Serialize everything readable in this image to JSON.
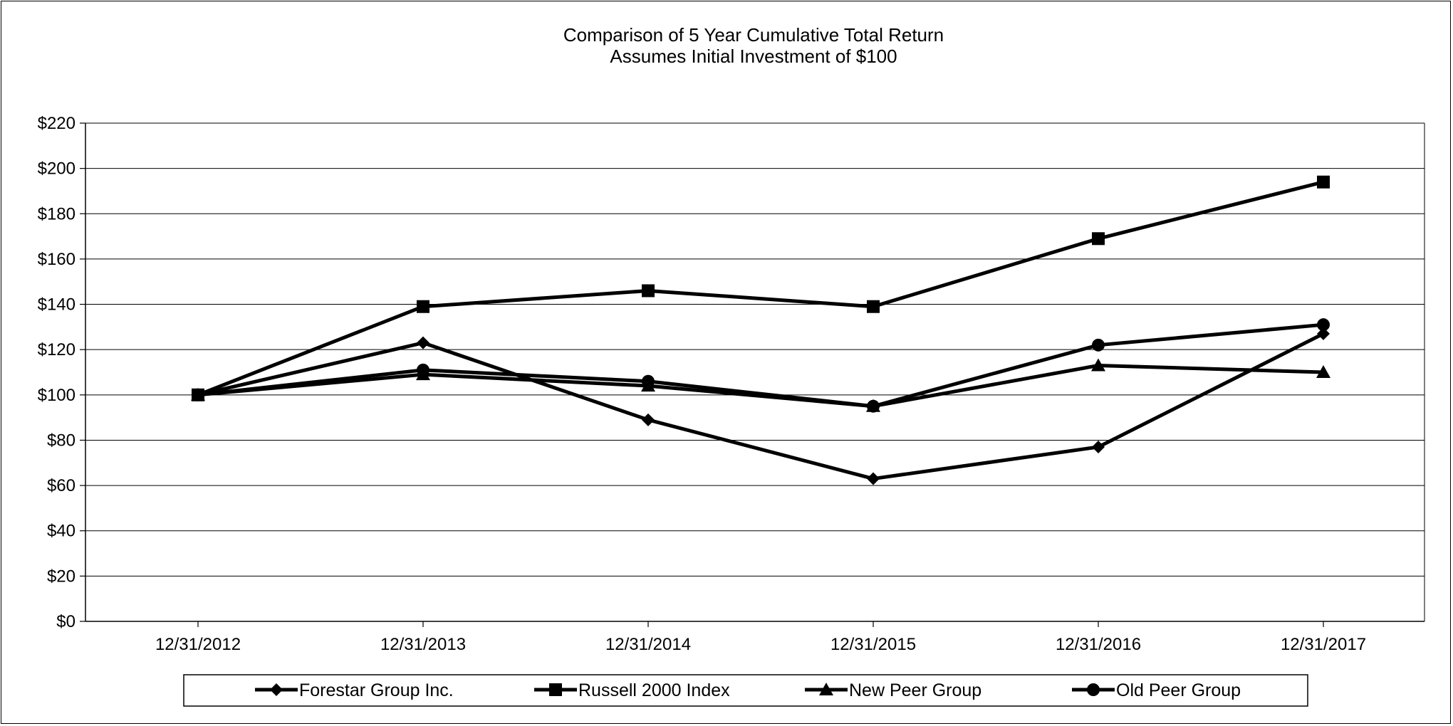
{
  "chart_data": {
    "type": "line",
    "title": "Comparison of 5 Year Cumulative Total Return",
    "subtitle": "Assumes Initial Investment of $100",
    "xlabel": "",
    "ylabel": "",
    "categories": [
      "12/31/2012",
      "12/31/2013",
      "12/31/2014",
      "12/31/2015",
      "12/31/2016",
      "12/31/2017"
    ],
    "y_ticks": [
      "$0",
      "$20",
      "$40",
      "$60",
      "$80",
      "$100",
      "$120",
      "$140",
      "$160",
      "$180",
      "$200",
      "$220"
    ],
    "ylim": [
      0,
      220
    ],
    "grid": true,
    "legend_position": "bottom",
    "series": [
      {
        "name": "Forestar Group Inc.",
        "marker": "diamond",
        "color": "#000000",
        "values": [
          100,
          123,
          89,
          63,
          77,
          127
        ]
      },
      {
        "name": "Russell 2000 Index",
        "marker": "square",
        "color": "#000000",
        "values": [
          100,
          139,
          146,
          139,
          169,
          194
        ]
      },
      {
        "name": "New Peer Group",
        "marker": "triangle",
        "color": "#000000",
        "values": [
          100,
          109,
          104,
          95,
          113,
          110
        ]
      },
      {
        "name": "Old Peer Group",
        "marker": "circle",
        "color": "#000000",
        "values": [
          100,
          111,
          106,
          95,
          122,
          131
        ]
      }
    ]
  }
}
